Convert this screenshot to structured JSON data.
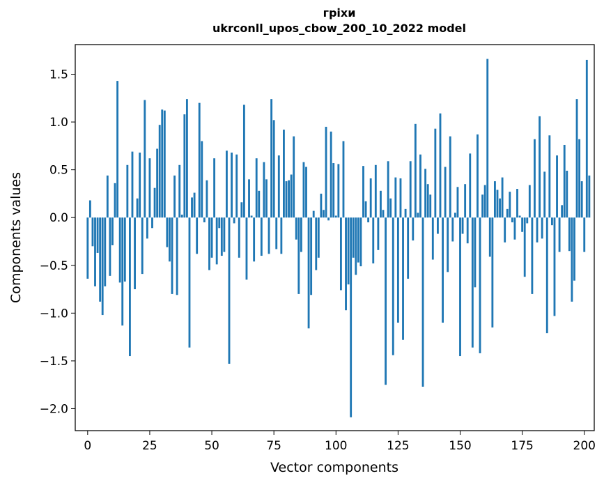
{
  "chart_data": {
    "type": "bar",
    "title": "гріхи",
    "subtitle": "ukrconll_upos_cbow_200_10_2022 model",
    "xlabel": "Vector components",
    "ylabel": "Components values",
    "xlim": [
      -5,
      204
    ],
    "ylim": [
      -2.23,
      1.81
    ],
    "xticks": [
      0,
      25,
      50,
      75,
      100,
      125,
      150,
      175,
      200
    ],
    "xtick_labels": [
      "0",
      "25",
      "50",
      "75",
      "100",
      "125",
      "150",
      "175",
      "200"
    ],
    "yticks": [
      -2.0,
      -1.5,
      -1.0,
      -0.5,
      0.0,
      0.5,
      1.0,
      1.5
    ],
    "ytick_labels": [
      "−2.0",
      "−1.5",
      "−1.0",
      "−0.5",
      "0.0",
      "0.5",
      "1.0",
      "1.5"
    ],
    "grid": false,
    "bar_color": "#1f77b4",
    "values": [
      -0.64,
      0.18,
      -0.3,
      -0.72,
      -0.37,
      -0.88,
      -1.02,
      -0.72,
      0.44,
      -0.61,
      -0.29,
      0.36,
      1.43,
      -0.68,
      -1.13,
      -0.67,
      0.55,
      -1.45,
      0.69,
      -0.75,
      0.2,
      0.68,
      -0.59,
      1.23,
      -0.22,
      0.62,
      -0.11,
      0.31,
      0.72,
      0.97,
      1.13,
      1.12,
      -0.31,
      -0.46,
      -0.8,
      0.44,
      -0.81,
      0.55,
      0.03,
      1.08,
      1.24,
      -1.36,
      0.21,
      0.26,
      -0.38,
      1.2,
      0.8,
      -0.05,
      0.39,
      -0.55,
      -0.42,
      0.62,
      -0.49,
      -0.11,
      -0.4,
      -0.36,
      0.7,
      -1.53,
      0.68,
      -0.06,
      0.66,
      -0.42,
      0.16,
      1.18,
      -0.65,
      0.4,
      0.02,
      -0.46,
      0.62,
      0.28,
      -0.4,
      0.58,
      0.4,
      -0.38,
      1.24,
      1.02,
      -0.33,
      0.65,
      -0.38,
      0.92,
      0.38,
      0.39,
      0.45,
      0.85,
      -0.23,
      -0.8,
      -0.36,
      0.58,
      0.53,
      -1.16,
      -0.81,
      0.07,
      -0.55,
      -0.42,
      0.25,
      0.08,
      0.95,
      -0.03,
      0.9,
      0.57,
      0.02,
      0.56,
      -0.76,
      0.8,
      -0.97,
      -0.7,
      -2.09,
      -0.42,
      -0.6,
      -0.47,
      -0.51,
      0.54,
      0.17,
      -0.05,
      0.41,
      -0.48,
      0.55,
      -0.34,
      0.28,
      0.08,
      -1.75,
      0.59,
      0.2,
      -1.44,
      0.42,
      -1.1,
      0.41,
      -1.28,
      0.09,
      -0.64,
      0.59,
      -0.24,
      0.98,
      0.05,
      0.66,
      -1.77,
      0.51,
      0.35,
      0.24,
      -0.44,
      0.93,
      -0.17,
      1.09,
      -1.1,
      0.53,
      -0.57,
      0.85,
      -0.25,
      0.05,
      0.32,
      -1.45,
      -0.17,
      0.35,
      -0.27,
      0.67,
      -1.36,
      -0.73,
      0.87,
      -1.42,
      0.24,
      0.34,
      1.66,
      -0.41,
      -1.15,
      0.38,
      0.29,
      0.2,
      0.42,
      -0.26,
      0.09,
      0.27,
      -0.05,
      -0.23,
      0.3,
      0.02,
      -0.15,
      -0.62,
      -0.06,
      0.34,
      -0.8,
      0.82,
      -0.26,
      1.06,
      -0.22,
      0.48,
      -1.21,
      0.86,
      -0.08,
      -1.03,
      0.65,
      -0.36,
      0.13,
      0.76,
      0.49,
      -0.35,
      -0.88,
      -0.66,
      1.24,
      0.82,
      0.38,
      -0.36,
      1.65,
      0.44
    ]
  }
}
